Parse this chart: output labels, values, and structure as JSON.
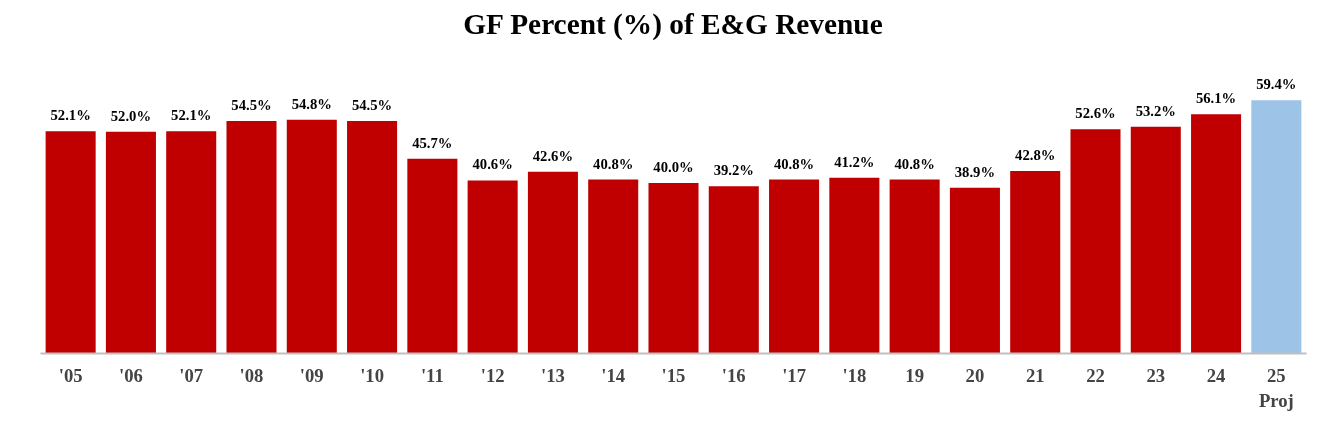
{
  "chart_data": {
    "type": "bar",
    "title": "GF Percent (%) of E&G Revenue",
    "categories": [
      "'05",
      "'06",
      "'07",
      "'08",
      "'09",
      "'10",
      "'11",
      "'12",
      "'13",
      "'14",
      "'15",
      "'16",
      "'17",
      "'18",
      "19",
      "20",
      "21",
      "22",
      "23",
      "24",
      "25\nProj"
    ],
    "values": [
      52.1,
      52.0,
      52.1,
      54.5,
      54.8,
      54.5,
      45.7,
      40.6,
      42.6,
      40.8,
      40.0,
      39.2,
      40.8,
      41.2,
      40.8,
      38.9,
      42.8,
      52.6,
      53.2,
      56.1,
      59.4
    ],
    "colors": [
      "#c00000",
      "#c00000",
      "#c00000",
      "#c00000",
      "#c00000",
      "#c00000",
      "#c00000",
      "#c00000",
      "#c00000",
      "#c00000",
      "#c00000",
      "#c00000",
      "#c00000",
      "#c00000",
      "#c00000",
      "#c00000",
      "#c00000",
      "#c00000",
      "#c00000",
      "#c00000",
      "#9dc3e6"
    ],
    "value_labels": [
      "52.1%",
      "52.0%",
      "52.1%",
      "54.5%",
      "54.8%",
      "54.5%",
      "45.7%",
      "40.6%",
      "42.6%",
      "40.8%",
      "40.0%",
      "39.2%",
      "40.8%",
      "41.2%",
      "40.8%",
      "38.9%",
      "42.8%",
      "52.6%",
      "53.2%",
      "56.1%",
      "59.4%"
    ],
    "grid": false
  }
}
